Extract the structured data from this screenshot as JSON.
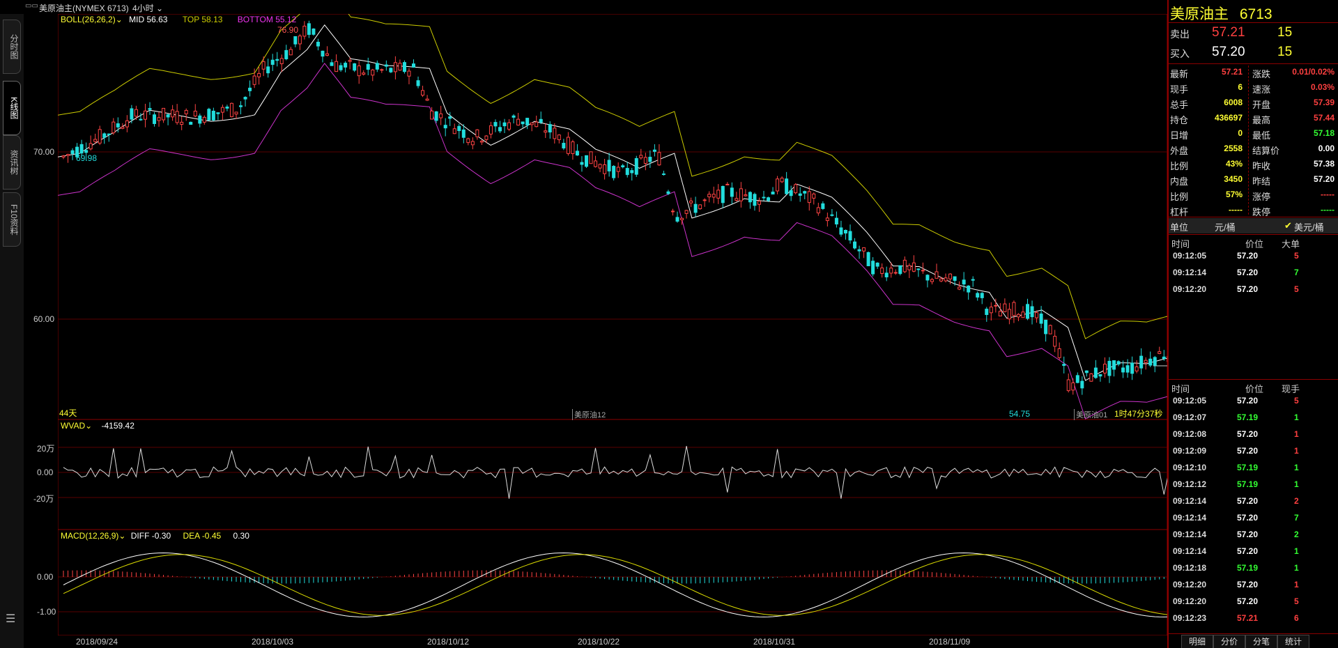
{
  "titlebar": {
    "instrument": "美原油主(NYMEX 6713)",
    "period": "4小时"
  },
  "left_tabs": [
    "分时图",
    "K线图",
    "资讯树",
    "F10资料"
  ],
  "colors": {
    "up": "#ff4444",
    "down": "#22dddd",
    "mid": "#ffffff",
    "top": "#cccc00",
    "bottom": "#cc33cc",
    "grid": "#8b0000"
  },
  "boll": {
    "name": "BOLL(26,26,2)",
    "mid": "MID 56.63",
    "top": "TOP 58.13",
    "bottom": "BOTTOM 55.12"
  },
  "price_axis": [
    "70.00",
    "60.00"
  ],
  "annotations": {
    "high": "76.90",
    "low_left": "69.98",
    "low_right": "54.75",
    "days": "44天",
    "contract_a": "美原油12",
    "contract_b": "美原油01",
    "countdown": "1时47分37秒"
  },
  "wvad": {
    "name": "WVAD",
    "value": "-4159.42",
    "ticks": [
      "20万",
      "0.00",
      "-20万"
    ]
  },
  "macd": {
    "name": "MACD(12,26,9)",
    "diff": "DIFF -0.30",
    "dea": "DEA -0.45",
    "macd": "0.30",
    "ticks": [
      "0.00",
      "-1.00"
    ]
  },
  "dates": [
    "2018/09/24",
    "2018/10/03",
    "2018/10/12",
    "2018/10/22",
    "2018/10/31",
    "2018/11/09"
  ],
  "quote": {
    "name": "美原油主",
    "code": "6713",
    "sell_label": "卖出",
    "sell_price": "57.21",
    "sell_qty": "15",
    "buy_label": "买入",
    "buy_price": "57.20",
    "buy_qty": "15",
    "left": [
      {
        "k": "最新",
        "v": "57.21",
        "c": "red"
      },
      {
        "k": "现手",
        "v": "6",
        "c": "yel"
      },
      {
        "k": "总手",
        "v": "6008",
        "c": "yel"
      },
      {
        "k": "持仓",
        "v": "436697",
        "c": "yel"
      },
      {
        "k": "日增",
        "v": "0",
        "c": "yel"
      },
      {
        "k": "外盘",
        "v": "2558",
        "c": "yel"
      },
      {
        "k": "比例",
        "v": "43%",
        "c": "yel"
      },
      {
        "k": "内盘",
        "v": "3450",
        "c": "yel"
      },
      {
        "k": "比例",
        "v": "57%",
        "c": "yel"
      },
      {
        "k": "杠杆",
        "v": "-----",
        "c": "yel"
      }
    ],
    "right": [
      {
        "k": "涨跌",
        "v": "0.01/0.02%",
        "c": "red"
      },
      {
        "k": "速涨",
        "v": "0.03%",
        "c": "red"
      },
      {
        "k": "开盘",
        "v": "57.39",
        "c": "red"
      },
      {
        "k": "最高",
        "v": "57.44",
        "c": "red"
      },
      {
        "k": "最低",
        "v": "57.18",
        "c": "green"
      },
      {
        "k": "结算价",
        "v": "0.00",
        "c": "wht"
      },
      {
        "k": "昨收",
        "v": "57.38",
        "c": "wht"
      },
      {
        "k": "昨结",
        "v": "57.20",
        "c": "wht"
      },
      {
        "k": "涨停",
        "v": "-----",
        "c": "red"
      },
      {
        "k": "跌停",
        "v": "-----",
        "c": "green"
      }
    ],
    "unit_label": "单位",
    "unit_a": "元/桶",
    "unit_b": "美元/桶"
  },
  "big_orders": {
    "headers": [
      "时间",
      "价位",
      "大单"
    ],
    "rows": [
      {
        "t": "09:12:05",
        "p": "57.20",
        "q": "5",
        "c": "red"
      },
      {
        "t": "09:12:14",
        "p": "57.20",
        "q": "7",
        "c": "green"
      },
      {
        "t": "09:12:20",
        "p": "57.20",
        "q": "5",
        "c": "red"
      }
    ]
  },
  "ticks": {
    "headers": [
      "时间",
      "价位",
      "现手"
    ],
    "rows": [
      {
        "t": "09:12:05",
        "p": "57.20",
        "pc": "wht",
        "q": "5",
        "c": "red"
      },
      {
        "t": "09:12:07",
        "p": "57.19",
        "pc": "green",
        "q": "1",
        "c": "green"
      },
      {
        "t": "09:12:08",
        "p": "57.20",
        "pc": "wht",
        "q": "1",
        "c": "red"
      },
      {
        "t": "09:12:09",
        "p": "57.20",
        "pc": "wht",
        "q": "1",
        "c": "red"
      },
      {
        "t": "09:12:10",
        "p": "57.19",
        "pc": "green",
        "q": "1",
        "c": "green"
      },
      {
        "t": "09:12:12",
        "p": "57.19",
        "pc": "green",
        "q": "1",
        "c": "green"
      },
      {
        "t": "09:12:14",
        "p": "57.20",
        "pc": "wht",
        "q": "2",
        "c": "red"
      },
      {
        "t": "09:12:14",
        "p": "57.20",
        "pc": "wht",
        "q": "7",
        "c": "green"
      },
      {
        "t": "09:12:14",
        "p": "57.20",
        "pc": "wht",
        "q": "2",
        "c": "green"
      },
      {
        "t": "09:12:14",
        "p": "57.20",
        "pc": "wht",
        "q": "1",
        "c": "green"
      },
      {
        "t": "09:12:18",
        "p": "57.19",
        "pc": "green",
        "q": "1",
        "c": "green"
      },
      {
        "t": "09:12:20",
        "p": "57.20",
        "pc": "wht",
        "q": "1",
        "c": "red"
      },
      {
        "t": "09:12:20",
        "p": "57.20",
        "pc": "wht",
        "q": "5",
        "c": "red"
      },
      {
        "t": "09:12:23",
        "p": "57.21",
        "pc": "red",
        "q": "6",
        "c": "red"
      }
    ]
  },
  "bottom_tabs": [
    "明细",
    "分价",
    "分笔",
    "统计"
  ]
}
